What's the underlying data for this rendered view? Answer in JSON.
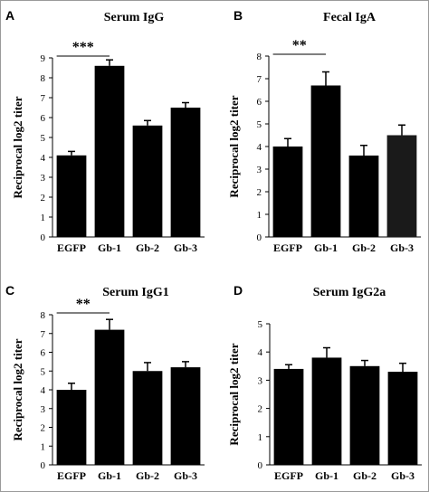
{
  "chart_data": [
    {
      "panel": "A",
      "type": "bar",
      "title": "Serum IgG",
      "ylabel": "Reciprocal log2 titer",
      "xlabel": "",
      "categories": [
        "EGFP",
        "Gb-1",
        "Gb-2",
        "Gb-3"
      ],
      "values": [
        4.1,
        8.6,
        5.6,
        6.5
      ],
      "errors": [
        0.2,
        0.3,
        0.25,
        0.25
      ],
      "ylim": [
        0,
        9
      ],
      "yticks": [
        "0",
        "1",
        "2",
        "3",
        "4",
        "5",
        "6",
        "7",
        "8",
        "9"
      ],
      "bar_colors": [
        "#000000",
        "#000000",
        "#000000",
        "#000000"
      ],
      "significance": {
        "label": "***",
        "from": 0,
        "to": 1
      }
    },
    {
      "panel": "B",
      "type": "bar",
      "title": "Fecal IgA",
      "ylabel": "Reciprocal log2 titer",
      "xlabel": "",
      "categories": [
        "EGFP",
        "Gb-1",
        "Gb-2",
        "Gb-3"
      ],
      "values": [
        4.0,
        6.7,
        3.6,
        4.5
      ],
      "errors": [
        0.35,
        0.6,
        0.45,
        0.45
      ],
      "ylim": [
        0,
        8
      ],
      "yticks": [
        "0",
        "1",
        "2",
        "3",
        "4",
        "5",
        "6",
        "7",
        "8"
      ],
      "bar_colors": [
        "#000000",
        "#000000",
        "#000000",
        "#1a1a1a"
      ],
      "significance": {
        "label": "**",
        "from": 0,
        "to": 1
      }
    },
    {
      "panel": "C",
      "type": "bar",
      "title": "Serum IgG1",
      "ylabel": "Reciprocal log2 titer",
      "xlabel": "",
      "categories": [
        "EGFP",
        "Gb-1",
        "Gb-2",
        "Gb-3"
      ],
      "values": [
        4.0,
        7.2,
        5.0,
        5.2
      ],
      "errors": [
        0.35,
        0.55,
        0.45,
        0.3
      ],
      "ylim": [
        0,
        8
      ],
      "yticks": [
        "0",
        "1",
        "2",
        "3",
        "4",
        "5",
        "6",
        "7",
        "8"
      ],
      "bar_colors": [
        "#000000",
        "#000000",
        "#000000",
        "#000000"
      ],
      "significance": {
        "label": "**",
        "from": 0,
        "to": 1
      }
    },
    {
      "panel": "D",
      "type": "bar",
      "title": "Serum IgG2a",
      "ylabel": "Reciprocal log2 titer",
      "xlabel": "",
      "categories": [
        "EGFP",
        "Gb-1",
        "Gb-2",
        "Gb-3"
      ],
      "values": [
        3.4,
        3.8,
        3.5,
        3.3
      ],
      "errors": [
        0.15,
        0.35,
        0.2,
        0.3
      ],
      "ylim": [
        0,
        5
      ],
      "yticks": [
        "0",
        "1",
        "2",
        "3",
        "4",
        "5"
      ],
      "bar_colors": [
        "#000000",
        "#000000",
        "#000000",
        "#000000"
      ],
      "significance": null
    }
  ]
}
